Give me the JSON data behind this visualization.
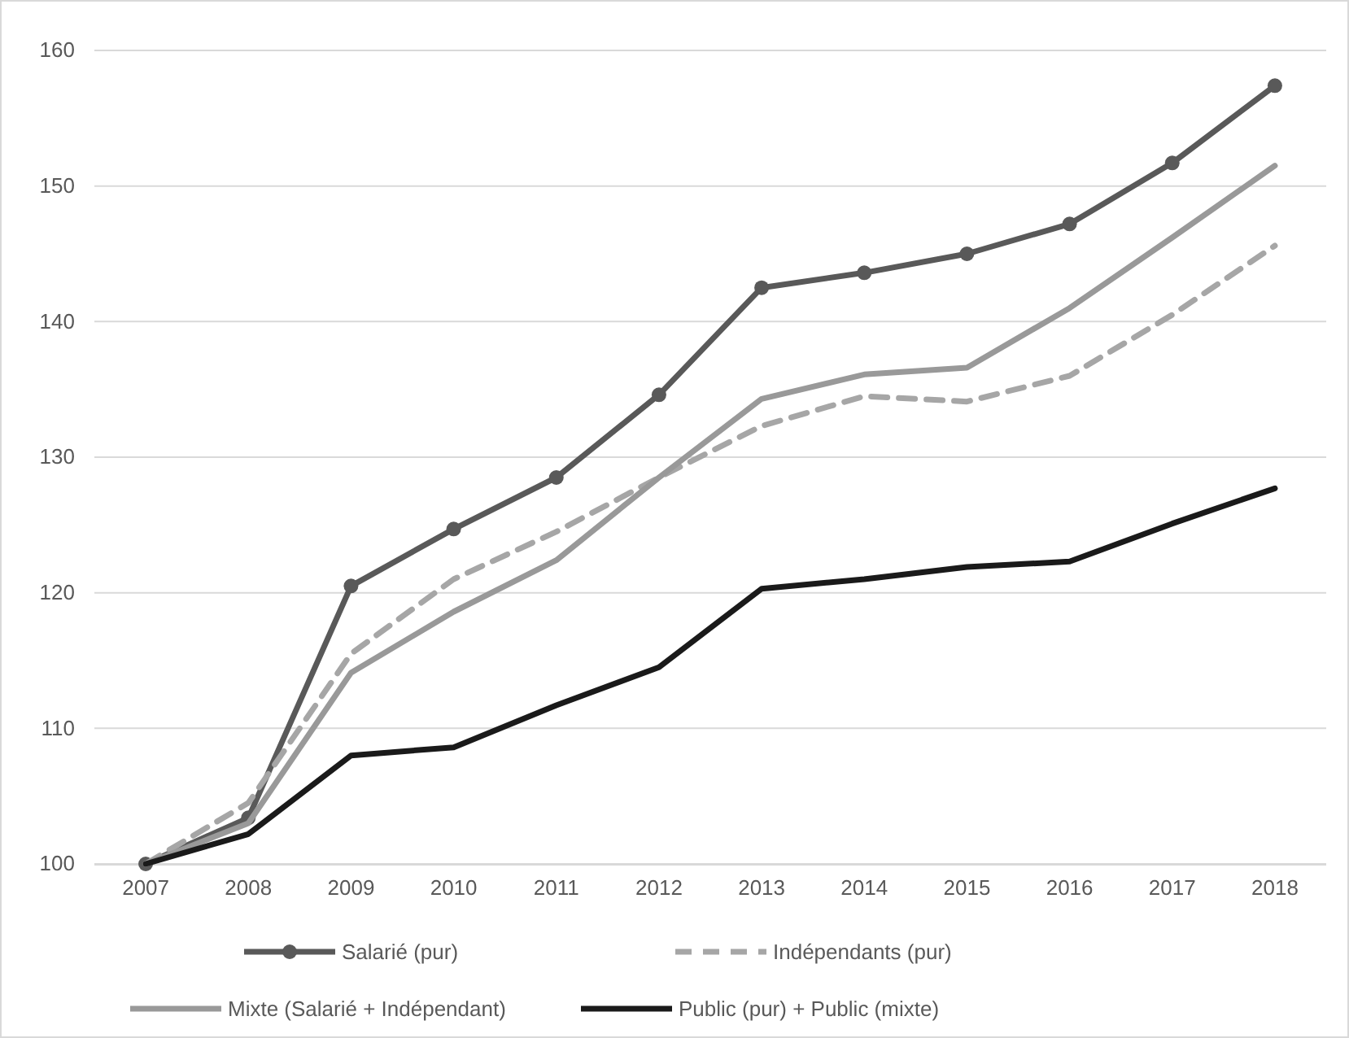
{
  "chart_data": {
    "type": "line",
    "categories": [
      "2007",
      "2008",
      "2009",
      "2010",
      "2011",
      "2012",
      "2013",
      "2014",
      "2015",
      "2016",
      "2017",
      "2018"
    ],
    "ylim": [
      100,
      160
    ],
    "yticks": [
      100,
      110,
      120,
      130,
      140,
      150,
      160
    ],
    "grid": "y",
    "legend": "bottom",
    "series": [
      {
        "name": "Salarié (pur)",
        "color": "#595959",
        "marker": "circle",
        "line_style": "solid",
        "values": [
          100,
          103.4,
          120.5,
          124.7,
          128.5,
          134.6,
          142.5,
          143.6,
          145,
          147.2,
          151.7,
          157.4
        ]
      },
      {
        "name": "Indépendants (pur)",
        "color": "#a6a6a6",
        "marker": "none",
        "line_style": "dashed",
        "values": [
          100,
          104.5,
          115.5,
          121,
          124.5,
          128.5,
          132.3,
          134.5,
          134.1,
          136,
          140.5,
          145.6
        ]
      },
      {
        "name": "Mixte (Salarié + Indépendant)",
        "color": "#999999",
        "marker": "none",
        "line_style": "solid",
        "values": [
          100,
          103,
          114.1,
          118.6,
          122.4,
          128.5,
          134.3,
          136.1,
          136.6,
          141,
          146.2,
          151.5
        ]
      },
      {
        "name": "Public (pur) + Public (mixte)",
        "color": "#1a1a1a",
        "marker": "none",
        "line_style": "solid",
        "values": [
          100,
          102.2,
          108,
          108.6,
          111.7,
          114.5,
          120.3,
          121,
          121.9,
          122.3,
          125.1,
          127.7
        ]
      }
    ]
  }
}
